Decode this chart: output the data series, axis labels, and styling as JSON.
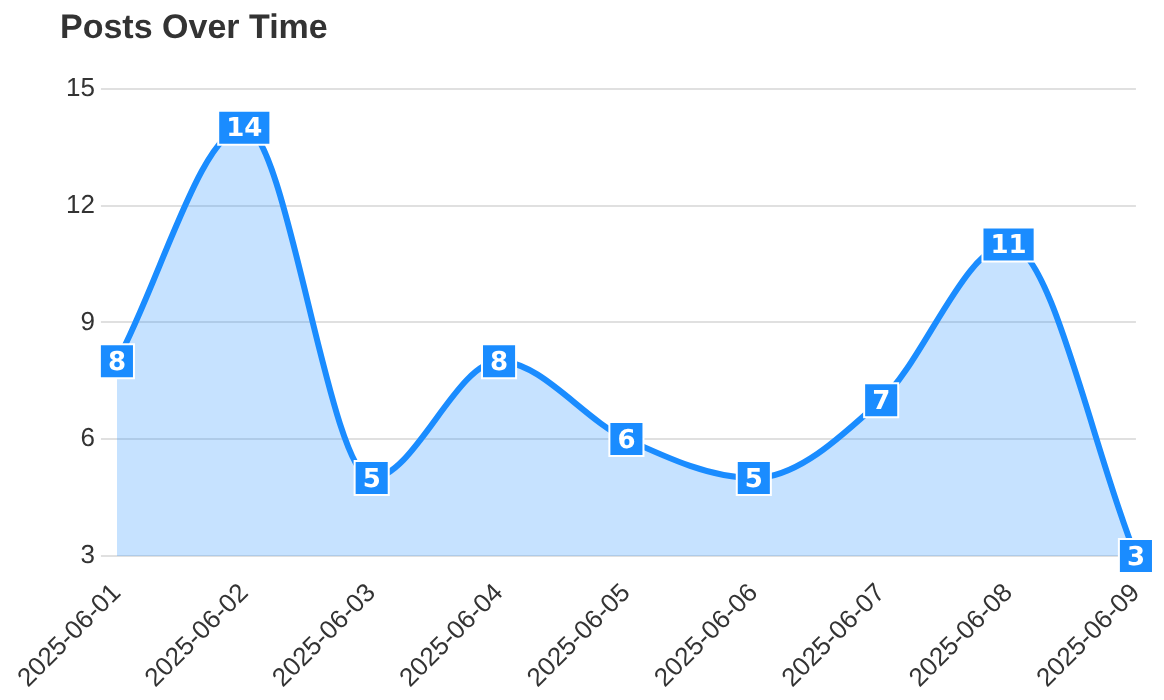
{
  "chart_data": {
    "type": "area",
    "title": "Posts Over Time",
    "categories": [
      "2025-06-01",
      "2025-06-02",
      "2025-06-03",
      "2025-06-04",
      "2025-06-05",
      "2025-06-06",
      "2025-06-07",
      "2025-06-08",
      "2025-06-09"
    ],
    "values": [
      8,
      14,
      5,
      8,
      6,
      5,
      7,
      11,
      3
    ],
    "color": "#1a8cff",
    "ylim": [
      3,
      15
    ],
    "yticks": [
      3,
      6,
      9,
      12,
      15
    ],
    "grid": "y",
    "data_labels": true
  }
}
